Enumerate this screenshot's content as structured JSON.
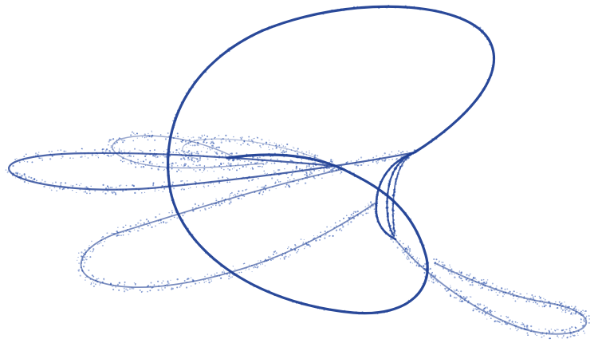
{
  "image": {
    "background": "#ffffff",
    "stroke_color": "#1f3f93",
    "dot_color": "#2f56b0",
    "scatter_seed": 1337
  }
}
